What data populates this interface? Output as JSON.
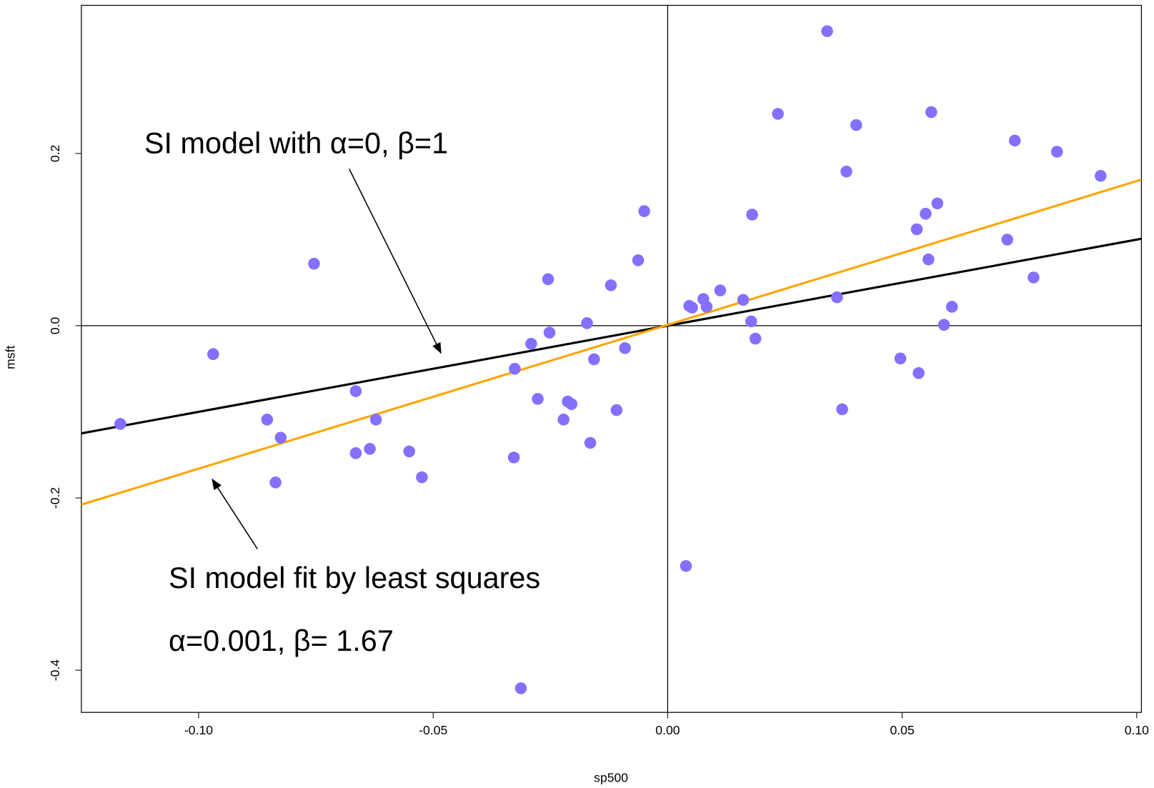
{
  "chart_data": {
    "type": "scatter",
    "x_label": "sp500",
    "y_label": "msft",
    "xlim": [
      -0.125,
      0.101
    ],
    "ylim": [
      -0.449,
      0.372
    ],
    "xticks": [
      {
        "value": -0.1,
        "label": "-0.10"
      },
      {
        "value": -0.05,
        "label": "-0.05"
      },
      {
        "value": 0,
        "label": "0.00"
      },
      {
        "value": 0.05,
        "label": "0.05"
      },
      {
        "value": 0.1,
        "label": "0.10"
      }
    ],
    "yticks": [
      -0.4,
      -0.2,
      {
        "value": 0,
        "label": "0.0"
      },
      0.2
    ],
    "color": "#8470ff",
    "x": [
      -0.1167,
      -0.0969,
      -0.0854,
      -0.0836,
      -0.0825,
      -0.0754,
      -0.0665,
      -0.0665,
      -0.0635,
      -0.0622,
      -0.0551,
      -0.0524,
      -0.0328,
      -0.0326,
      -0.0313,
      -0.0291,
      -0.0277,
      -0.0255,
      -0.0252,
      -0.0222,
      -0.0213,
      -0.0205,
      -0.0172,
      -0.0165,
      -0.0157,
      -0.0121,
      -0.0109,
      -0.0091,
      -0.0063,
      -0.005,
      0.0039,
      0.0046,
      0.0052,
      0.0076,
      0.0083,
      0.0112,
      0.0161,
      0.0178,
      0.018,
      0.0187,
      0.0235,
      0.034,
      0.0361,
      0.0372,
      0.0381,
      0.0402,
      0.0496,
      0.0531,
      0.0535,
      0.055,
      0.0556,
      0.0562,
      0.0575,
      0.0589,
      0.0606,
      0.0724,
      0.074,
      0.078,
      0.083,
      0.0923
    ],
    "values": [
      -0.114,
      -0.033,
      -0.109,
      -0.182,
      -0.13,
      0.072,
      -0.076,
      -0.148,
      -0.143,
      -0.109,
      -0.146,
      -0.176,
      -0.153,
      -0.05,
      -0.421,
      -0.021,
      -0.085,
      0.054,
      -0.008,
      -0.109,
      -0.088,
      -0.091,
      0.003,
      -0.136,
      -0.039,
      0.047,
      -0.098,
      -0.026,
      0.076,
      0.133,
      -0.279,
      0.023,
      0.021,
      0.031,
      0.022,
      0.041,
      0.03,
      0.005,
      0.129,
      -0.015,
      0.246,
      0.342,
      0.033,
      -0.097,
      0.179,
      0.233,
      -0.038,
      0.112,
      -0.055,
      0.13,
      0.077,
      0.248,
      0.142,
      0.001,
      0.022,
      0.1,
      0.215,
      0.056,
      0.202,
      0.174
    ],
    "hline": 0,
    "vline": 0,
    "lines": [
      {
        "intercept": 0,
        "slope": 1,
        "color": "#000000"
      },
      {
        "intercept": 0.001,
        "slope": 1.67,
        "color": "#ffa500"
      }
    ],
    "annotations": [
      "SI model with α=0, β=1",
      "SI model fit by least squares",
      "α=0.001, β= 1.67"
    ]
  }
}
